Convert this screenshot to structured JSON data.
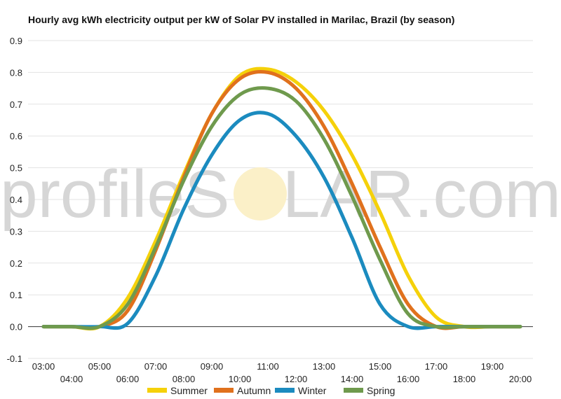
{
  "chart_data": {
    "type": "line",
    "title": "Hourly avg kWh electricity output per kW of Solar PV installed in Marilac, Brazil (by season)",
    "xlabel": "",
    "ylabel": "",
    "watermark": "profileSOLAR.com",
    "ylim": [
      -0.1,
      0.9
    ],
    "yticks": [
      "-0.1",
      "0.0",
      "0.1",
      "0.2",
      "0.3",
      "0.4",
      "0.5",
      "0.6",
      "0.7",
      "0.8",
      "0.9"
    ],
    "grid": true,
    "legend_position": "bottom",
    "x": [
      "03:00",
      "04:00",
      "05:00",
      "06:00",
      "07:00",
      "08:00",
      "09:00",
      "10:00",
      "11:00",
      "12:00",
      "13:00",
      "14:00",
      "15:00",
      "16:00",
      "17:00",
      "18:00",
      "19:00",
      "20:00"
    ],
    "series": [
      {
        "name": "Summer",
        "color": "#f5d10a",
        "values": [
          0.0,
          0.0,
          0.0,
          0.09,
          0.27,
          0.48,
          0.67,
          0.79,
          0.81,
          0.77,
          0.68,
          0.54,
          0.36,
          0.16,
          0.03,
          0.0,
          0.0,
          0.0
        ]
      },
      {
        "name": "Autumn",
        "color": "#e0711d",
        "values": [
          0.0,
          0.0,
          0.0,
          0.05,
          0.24,
          0.47,
          0.67,
          0.78,
          0.8,
          0.75,
          0.63,
          0.45,
          0.25,
          0.07,
          0.0,
          0.0,
          0.0,
          0.0
        ]
      },
      {
        "name": "Winter",
        "color": "#1b8bbf",
        "values": [
          0.0,
          0.0,
          0.0,
          0.01,
          0.16,
          0.37,
          0.54,
          0.65,
          0.67,
          0.6,
          0.47,
          0.28,
          0.07,
          0.0,
          0.0,
          0.0,
          0.0,
          0.0
        ]
      },
      {
        "name": "Spring",
        "color": "#6f9a4d",
        "values": [
          0.0,
          0.0,
          0.0,
          0.07,
          0.25,
          0.46,
          0.63,
          0.73,
          0.75,
          0.71,
          0.59,
          0.41,
          0.21,
          0.04,
          0.0,
          0.0,
          0.0,
          0.0
        ]
      }
    ]
  }
}
